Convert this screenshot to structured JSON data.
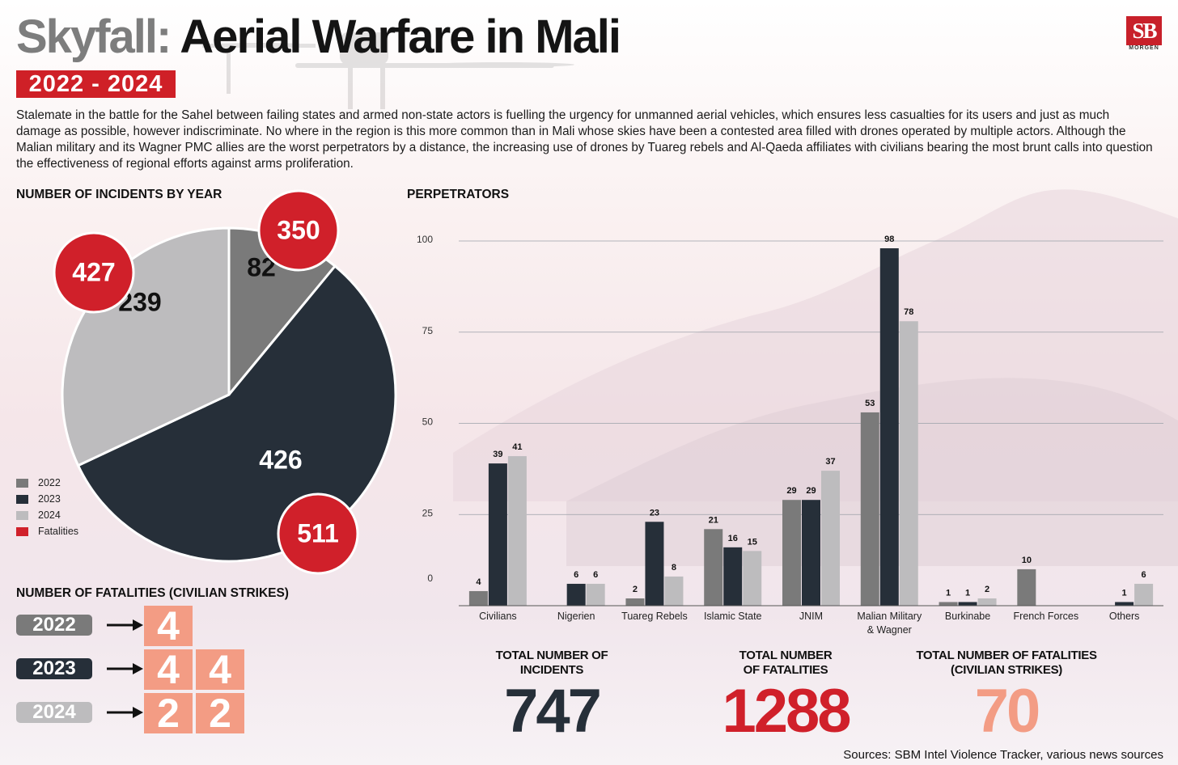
{
  "header": {
    "title_prefix": "Skyfall:",
    "title_main": "Aerial Warfare in Mali",
    "years_badge": "2022 - 2024",
    "logo_text": "SB",
    "logo_sub": "MORGEN"
  },
  "intro": "Stalemate in the battle for the Sahel between failing states and armed non-state actors is fuelling the urgency for unmanned aerial vehicles, which ensures less casualties for its users and just as much damage as possible, however indiscriminate. No where in the region is this more common than in Mali whose skies have been a contested area filled with drones operated by multiple actors. Although the Malian military and its Wagner PMC allies are the worst perpetrators by a distance, the increasing use of drones by Tuareg rebels and Al-Qaeda affiliates with civilians bearing the most brunt calls into question the effectiveness of regional efforts against arms proliferation.",
  "sections": {
    "incidents_heading": "NUMBER OF INCIDENTS BY YEAR",
    "perpetrators_heading": "PERPETRATORS",
    "fatalities_heading": "NUMBER OF FATALITIES (CIVILIAN STRIKES)"
  },
  "colors": {
    "y2022": "#7a7a7a",
    "y2023": "#262f39",
    "y2024": "#bdbcbe",
    "fatalities": "#d0202a",
    "salmon": "#f39c84"
  },
  "legend": [
    {
      "label": "2022",
      "color": "#7a7a7a"
    },
    {
      "label": "2023",
      "color": "#262f39"
    },
    {
      "label": "2024",
      "color": "#bdbcbe"
    },
    {
      "label": "Fatalities",
      "color": "#d0202a"
    }
  ],
  "chart_data": [
    {
      "type": "pie",
      "categories": [
        "2022",
        "2023",
        "2024"
      ],
      "values": [
        82,
        426,
        239
      ],
      "fatalities": [
        350,
        511,
        427
      ],
      "colors": [
        "#7a7a7a",
        "#262f39",
        "#bdbcbe"
      ]
    },
    {
      "type": "bar",
      "categories": [
        "Civilians",
        "Nigerien",
        "Tuareg Rebels",
        "Islamic State",
        "JNIM",
        "Malian Military & Wagner",
        "Burkinabe",
        "French Forces",
        "Others"
      ],
      "category_lines": [
        [
          "Civilians"
        ],
        [
          "Nigerien"
        ],
        [
          "Tuareg Rebels"
        ],
        [
          "Islamic State"
        ],
        [
          "JNIM"
        ],
        [
          "Malian Military",
          "& Wagner"
        ],
        [
          "Burkinabe"
        ],
        [
          "French Forces"
        ],
        [
          "Others"
        ]
      ],
      "series": [
        {
          "name": "2022",
          "color": "#7a7a7a",
          "values": [
            4,
            null,
            2,
            21,
            29,
            53,
            1,
            10,
            null
          ]
        },
        {
          "name": "2023",
          "color": "#262f39",
          "values": [
            39,
            6,
            23,
            16,
            29,
            98,
            1,
            null,
            1
          ]
        },
        {
          "name": "2024",
          "color": "#bdbcbe",
          "values": [
            41,
            6,
            8,
            15,
            37,
            78,
            2,
            null,
            6
          ]
        }
      ],
      "yticks": [
        0,
        25,
        50,
        75,
        100
      ],
      "ylim": [
        0,
        100
      ],
      "grid": true
    }
  ],
  "fatalities_by_year": [
    {
      "year": "2022",
      "digits": [
        "4"
      ],
      "pill_color": "#7a7a7a"
    },
    {
      "year": "2023",
      "digits": [
        "4",
        "4"
      ],
      "pill_color": "#262f39"
    },
    {
      "year": "2024",
      "digits": [
        "2",
        "2"
      ],
      "pill_color": "#bdbcbe"
    }
  ],
  "totals": [
    {
      "label_lines": [
        "TOTAL NUMBER OF",
        "INCIDENTS"
      ],
      "value": "747",
      "color": "#262f39"
    },
    {
      "label_lines": [
        "TOTAL NUMBER",
        "OF FATALITIES"
      ],
      "value": "1288",
      "color": "#d0202a"
    },
    {
      "label_lines": [
        "TOTAL NUMBER OF FATALITIES",
        "(CIVILIAN STRIKES)"
      ],
      "value": "70",
      "color": "#f39c84"
    }
  ],
  "source": "Sources: SBM Intel Violence Tracker, various news sources"
}
